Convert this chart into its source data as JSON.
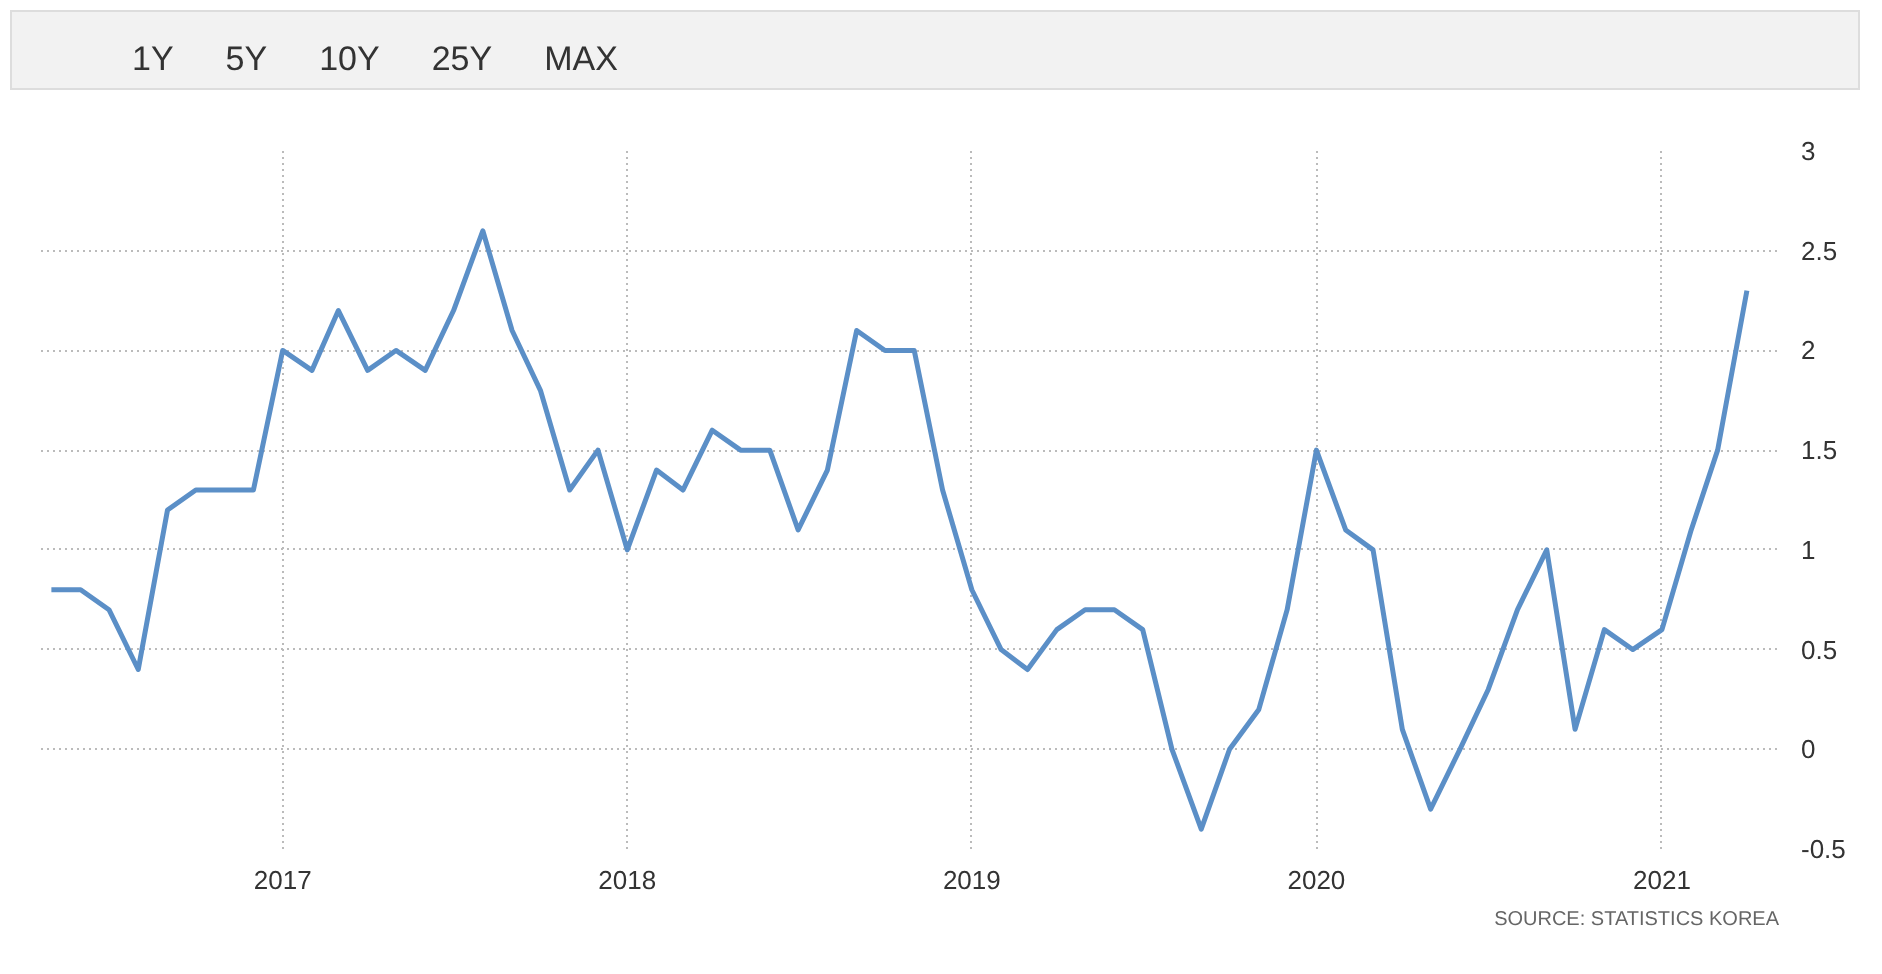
{
  "chart_data": {
    "type": "line",
    "x": [
      "2016-05",
      "2016-06",
      "2016-07",
      "2016-08",
      "2016-09",
      "2016-10",
      "2016-11",
      "2016-12",
      "2017-01",
      "2017-02",
      "2017-03",
      "2017-04",
      "2017-05",
      "2017-06",
      "2017-07",
      "2017-08",
      "2017-09",
      "2017-10",
      "2017-11",
      "2017-12",
      "2018-01",
      "2018-02",
      "2018-03",
      "2018-04",
      "2018-05",
      "2018-06",
      "2018-07",
      "2018-08",
      "2018-09",
      "2018-10",
      "2018-11",
      "2018-12",
      "2019-01",
      "2019-02",
      "2019-03",
      "2019-04",
      "2019-05",
      "2019-06",
      "2019-07",
      "2019-08",
      "2019-09",
      "2019-10",
      "2019-11",
      "2019-12",
      "2020-01",
      "2020-02",
      "2020-03",
      "2020-04",
      "2020-05",
      "2020-06",
      "2020-07",
      "2020-08",
      "2020-09",
      "2020-10",
      "2020-11",
      "2020-12",
      "2021-01",
      "2021-02",
      "2021-03",
      "2021-04"
    ],
    "series": [
      {
        "color": "#5b8fc7",
        "values": [
          0.8,
          0.8,
          0.7,
          0.4,
          1.2,
          1.3,
          1.3,
          1.3,
          2.0,
          1.9,
          2.2,
          1.9,
          2.0,
          1.9,
          2.2,
          2.6,
          2.1,
          1.8,
          1.3,
          1.5,
          1.0,
          1.4,
          1.3,
          1.6,
          1.5,
          1.5,
          1.1,
          1.4,
          2.1,
          2.0,
          2.0,
          1.3,
          0.8,
          0.5,
          0.4,
          0.6,
          0.7,
          0.7,
          0.6,
          0.0,
          -0.4,
          0.0,
          0.2,
          0.7,
          1.5,
          1.1,
          1.0,
          0.1,
          -0.3,
          0.0,
          0.3,
          0.7,
          1.0,
          0.1,
          0.6,
          0.5,
          0.6,
          1.1,
          1.5,
          2.3
        ]
      }
    ],
    "xlim": [
      "2016-04-20",
      "2021-05-05"
    ],
    "xticks": [
      "2017",
      "2018",
      "2019",
      "2020",
      "2021"
    ],
    "ylim": [
      -0.5,
      3
    ],
    "yticks": [
      -0.5,
      0,
      0.5,
      1,
      1.5,
      2,
      2.5,
      3
    ],
    "grid": true,
    "marker": "none",
    "line_style": "solid",
    "annotations": [
      "1Y",
      "5Y",
      "10Y",
      "25Y",
      "MAX",
      "SOURCE: STATISTICS KOREA"
    ]
  }
}
